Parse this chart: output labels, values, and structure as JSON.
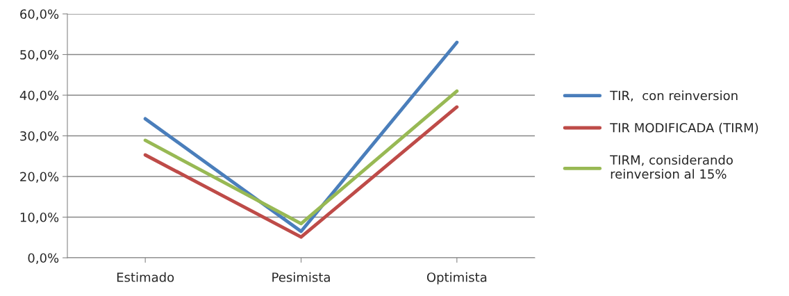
{
  "chart_data": {
    "type": "line",
    "categories": [
      "Estimado",
      "Pesimista",
      "Optimista"
    ],
    "series": [
      {
        "name": "TIR,  con reinversion",
        "color": "#4a7ebb",
        "values": [
          34.2,
          6.5,
          53.0
        ]
      },
      {
        "name": "TIR MODIFICADA (TIRM)",
        "color": "#be4b48",
        "values": [
          25.3,
          5.1,
          37.1
        ]
      },
      {
        "name": "TIRM, considerando\nreinversion al 15%",
        "color": "#98b954",
        "values": [
          28.9,
          8.4,
          41.0
        ]
      }
    ],
    "ylim": [
      0,
      60
    ],
    "yticks": [
      {
        "value": 0,
        "label": "0,0%"
      },
      {
        "value": 10,
        "label": "10,0%"
      },
      {
        "value": 20,
        "label": "20,0%"
      },
      {
        "value": 30,
        "label": "30,0%"
      },
      {
        "value": 40,
        "label": "40,0%"
      },
      {
        "value": 50,
        "label": "50,0%"
      },
      {
        "value": 60,
        "label": "60,0%"
      }
    ],
    "grid": "y",
    "legend": "right",
    "marker": "none",
    "line_style": "solid"
  }
}
